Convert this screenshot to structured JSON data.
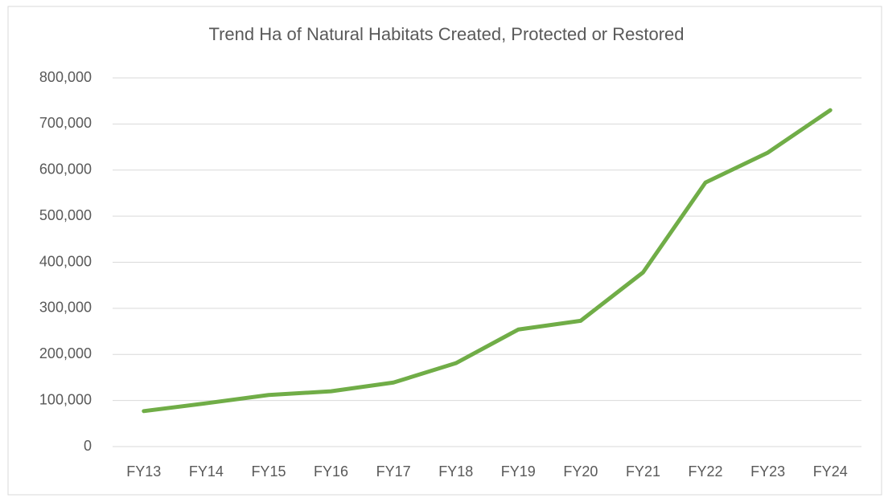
{
  "chart_data": {
    "type": "line",
    "title": "Trend Ha of Natural Habitats Created, Protected or Restored",
    "categories": [
      "FY13",
      "FY14",
      "FY15",
      "FY16",
      "FY17",
      "FY18",
      "FY19",
      "FY20",
      "FY21",
      "FY22",
      "FY23",
      "FY24"
    ],
    "series": [
      {
        "name": "Ha",
        "color": "#70ad47",
        "values": [
          77000,
          94000,
          112000,
          120000,
          139000,
          181000,
          254000,
          273000,
          378000,
          573000,
          638000,
          730000
        ]
      }
    ],
    "ylim": [
      0,
      800000
    ],
    "yticks": [
      0,
      {
        "value": 100000,
        "label": "100,000"
      },
      {
        "value": 200000,
        "label": "200,000"
      },
      {
        "value": 300000,
        "label": "300,000"
      },
      {
        "value": 400000,
        "label": "400,000"
      },
      {
        "value": 500000,
        "label": "500,000"
      },
      {
        "value": 600000,
        "label": "600,000"
      },
      {
        "value": 700000,
        "label": "700,000"
      },
      {
        "value": 800000,
        "label": "800,000"
      }
    ],
    "grid": true
  }
}
